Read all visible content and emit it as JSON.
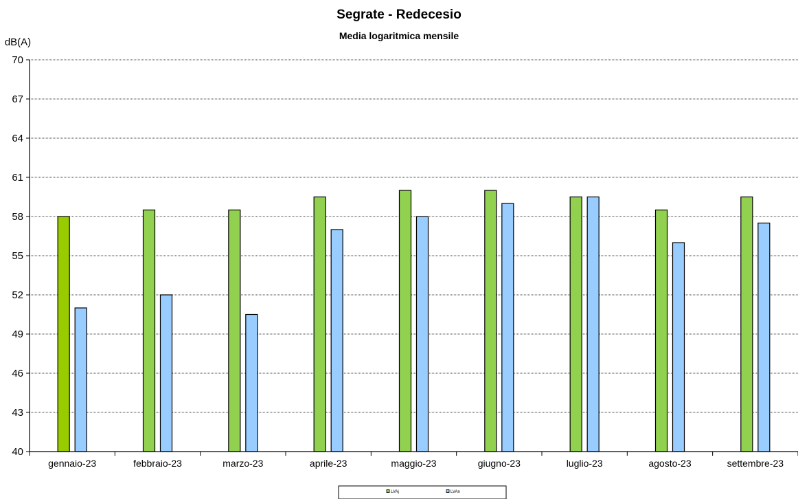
{
  "chart_data": {
    "type": "bar",
    "title": "Segrate - Redecesio",
    "subtitle": "Media logaritmica mensile",
    "ylabel": "dB(A)",
    "xlabel": "",
    "ylim": [
      40,
      70
    ],
    "yticks": [
      40,
      43,
      46,
      49,
      52,
      55,
      58,
      61,
      64,
      67,
      70
    ],
    "grid": true,
    "legend_position": "bottom",
    "categories": [
      "gennaio-23",
      "febbraio-23",
      "marzo-23",
      "aprile-23",
      "maggio-23",
      "giugno-23",
      "luglio-23",
      "agosto-23",
      "settembre-23"
    ],
    "series": [
      {
        "name": "LVAj",
        "values": [
          58.0,
          58.5,
          58.5,
          59.5,
          60.0,
          60.0,
          59.5,
          58.5,
          59.5
        ],
        "color": "#92D050",
        "highlight_color": "#99CC00"
      },
      {
        "name": "LVAn",
        "values": [
          51.0,
          52.0,
          50.5,
          57.0,
          58.0,
          59.0,
          59.5,
          56.0,
          57.5
        ],
        "color": "#99CCFF"
      }
    ]
  }
}
